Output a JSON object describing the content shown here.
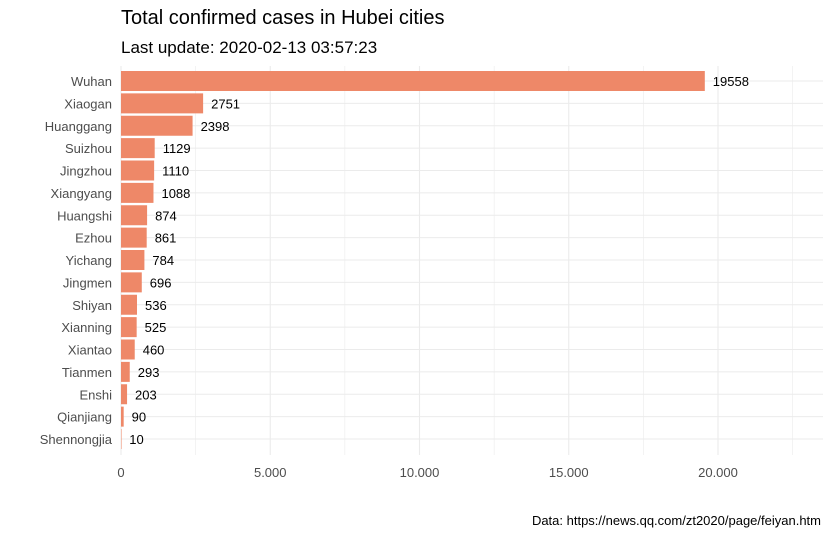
{
  "chart_data": {
    "type": "bar",
    "orientation": "horizontal",
    "title": "Total confirmed cases in Hubei cities",
    "subtitle": "Last update: 2020-02-13 03:57:23",
    "caption": "Data: https://news.qq.com/zt2020/page/feiyan.htm",
    "xlabel": "",
    "ylabel": "",
    "categories": [
      "Wuhan",
      "Xiaogan",
      "Huanggang",
      "Suizhou",
      "Jingzhou",
      "Xiangyang",
      "Huangshi",
      "Ezhou",
      "Yichang",
      "Jingmen",
      "Shiyan",
      "Xianning",
      "Xiantao",
      "Tianmen",
      "Enshi",
      "Qianjiang",
      "Shennongjia"
    ],
    "values": [
      19558,
      2751,
      2398,
      1129,
      1110,
      1088,
      874,
      861,
      784,
      696,
      536,
      525,
      460,
      293,
      203,
      90,
      10
    ],
    "data_labels": [
      "19558",
      "2751",
      "2398",
      "1129",
      "1110",
      "1088",
      "874",
      "861",
      "784",
      "696",
      "536",
      "525",
      "460",
      "293",
      "203",
      "90",
      "10"
    ],
    "xlim": [
      0,
      22500
    ],
    "x_ticks": [
      0,
      5000,
      10000,
      15000,
      20000
    ],
    "x_tick_labels": [
      "0",
      "5.000",
      "10.000",
      "15.000",
      "20.000"
    ],
    "grid": true,
    "bar_color": "#EE8868",
    "grid_color": "#ebebeb"
  }
}
